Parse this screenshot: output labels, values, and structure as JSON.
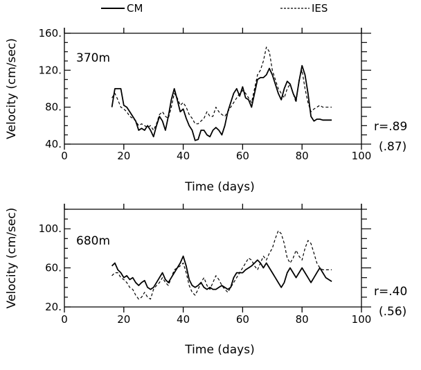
{
  "chart_data": [
    {
      "type": "line",
      "label": "370m",
      "xlabel": "Time (days)",
      "ylabel": "Velocity (cm/sec)",
      "xlim": [
        0,
        100
      ],
      "ylim": [
        40,
        160
      ],
      "x_ticks": [
        "0",
        "20",
        "40",
        "60",
        "80",
        "100"
      ],
      "y_ticks": [
        "40.",
        "80.",
        "120.",
        "160."
      ],
      "r_text": "r=.89",
      "r_paren": "(.87)",
      "series": [
        {
          "name": "CM",
          "style": "solid",
          "x": [
            16,
            17,
            18,
            19,
            20,
            21,
            22,
            23,
            24,
            25,
            26,
            27,
            28,
            29,
            30,
            31,
            32,
            33,
            34,
            35,
            36,
            37,
            38,
            39,
            40,
            41,
            42,
            43,
            44,
            45,
            46,
            47,
            48,
            49,
            50,
            51,
            52,
            53,
            54,
            55,
            56,
            57,
            58,
            59,
            60,
            61,
            62,
            63,
            64,
            65,
            66,
            67,
            68,
            69,
            70,
            71,
            72,
            73,
            74,
            75,
            76,
            77,
            78,
            79,
            80,
            81,
            82,
            83,
            84,
            85,
            86,
            87,
            88,
            89,
            90
          ],
          "y": [
            80,
            100,
            100,
            100,
            82,
            80,
            75,
            70,
            65,
            55,
            57,
            55,
            60,
            55,
            48,
            60,
            70,
            65,
            55,
            70,
            88,
            100,
            88,
            75,
            78,
            68,
            60,
            55,
            44,
            45,
            55,
            55,
            50,
            48,
            55,
            58,
            55,
            50,
            60,
            75,
            85,
            95,
            100,
            92,
            102,
            90,
            88,
            80,
            95,
            110,
            112,
            112,
            115,
            122,
            115,
            105,
            95,
            88,
            100,
            108,
            105,
            95,
            88,
            108,
            125,
            115,
            95,
            70,
            65,
            67,
            67,
            66,
            66,
            66,
            66
          ],
          "style_note": "solid"
        },
        {
          "name": "IES",
          "style": "dashed",
          "x": [
            16,
            17,
            18,
            19,
            20,
            21,
            22,
            23,
            24,
            25,
            26,
            27,
            28,
            29,
            30,
            31,
            32,
            33,
            34,
            35,
            36,
            37,
            38,
            39,
            40,
            41,
            42,
            43,
            44,
            45,
            46,
            47,
            48,
            49,
            50,
            51,
            52,
            53,
            54,
            55,
            56,
            57,
            58,
            59,
            60,
            61,
            62,
            63,
            64,
            65,
            66,
            67,
            68,
            69,
            70,
            71,
            72,
            73,
            74,
            75,
            76,
            77,
            78,
            79,
            80,
            81,
            82,
            83,
            84,
            85,
            86,
            87,
            88,
            89,
            90
          ],
          "y": [
            90,
            95,
            88,
            80,
            78,
            75,
            70,
            68,
            65,
            60,
            62,
            60,
            58,
            60,
            55,
            62,
            72,
            75,
            70,
            68,
            80,
            95,
            90,
            82,
            85,
            80,
            72,
            68,
            62,
            62,
            65,
            68,
            75,
            70,
            70,
            80,
            75,
            72,
            70,
            75,
            80,
            85,
            90,
            95,
            98,
            95,
            90,
            85,
            100,
            115,
            120,
            130,
            145,
            140,
            120,
            110,
            100,
            95,
            90,
            100,
            105,
            95,
            85,
            110,
            120,
            100,
            85,
            75,
            78,
            80,
            82,
            80,
            80,
            80,
            80
          ]
        }
      ]
    },
    {
      "type": "line",
      "label": "680m",
      "xlabel": "Time (days)",
      "ylabel": "Velocity (cm/sec)",
      "xlim": [
        0,
        100
      ],
      "ylim": [
        20,
        120
      ],
      "x_ticks": [
        "0",
        "20",
        "40",
        "60",
        "80",
        "100"
      ],
      "y_ticks": [
        "20.",
        "60.",
        "100."
      ],
      "r_text": "r=.40",
      "r_paren": "(.56)",
      "series": [
        {
          "name": "CM",
          "style": "solid",
          "x": [
            16,
            17,
            18,
            19,
            20,
            21,
            22,
            23,
            24,
            25,
            26,
            27,
            28,
            29,
            30,
            31,
            32,
            33,
            34,
            35,
            36,
            37,
            38,
            39,
            40,
            41,
            42,
            43,
            44,
            45,
            46,
            47,
            48,
            49,
            50,
            51,
            52,
            53,
            54,
            55,
            56,
            57,
            58,
            59,
            60,
            61,
            62,
            63,
            64,
            65,
            66,
            67,
            68,
            69,
            70,
            71,
            72,
            73,
            74,
            75,
            76,
            77,
            78,
            79,
            80,
            81,
            82,
            83,
            84,
            85,
            86,
            87,
            88,
            89,
            90
          ],
          "y": [
            62,
            65,
            58,
            55,
            50,
            52,
            48,
            50,
            45,
            42,
            45,
            47,
            40,
            38,
            40,
            45,
            50,
            55,
            48,
            45,
            50,
            55,
            60,
            65,
            72,
            62,
            48,
            42,
            40,
            42,
            45,
            40,
            38,
            40,
            38,
            38,
            40,
            42,
            40,
            38,
            40,
            50,
            55,
            55,
            55,
            58,
            60,
            62,
            65,
            68,
            65,
            60,
            65,
            60,
            55,
            50,
            45,
            40,
            45,
            55,
            60,
            55,
            50,
            55,
            60,
            55,
            50,
            45,
            50,
            55,
            60,
            55,
            50,
            48,
            46
          ]
        },
        {
          "name": "IES",
          "style": "dashed",
          "x": [
            16,
            17,
            18,
            19,
            20,
            21,
            22,
            23,
            24,
            25,
            26,
            27,
            28,
            29,
            30,
            31,
            32,
            33,
            34,
            35,
            36,
            37,
            38,
            39,
            40,
            41,
            42,
            43,
            44,
            45,
            46,
            47,
            48,
            49,
            50,
            51,
            52,
            53,
            54,
            55,
            56,
            57,
            58,
            59,
            60,
            61,
            62,
            63,
            64,
            65,
            66,
            67,
            68,
            69,
            70,
            71,
            72,
            73,
            74,
            75,
            76,
            77,
            78,
            79,
            80,
            81,
            82,
            83,
            84,
            85,
            86,
            87,
            88,
            89,
            90
          ],
          "y": [
            52,
            55,
            55,
            50,
            48,
            45,
            40,
            38,
            32,
            28,
            30,
            35,
            30,
            28,
            38,
            42,
            45,
            50,
            45,
            42,
            50,
            58,
            60,
            62,
            65,
            55,
            42,
            35,
            32,
            38,
            45,
            50,
            42,
            38,
            45,
            52,
            48,
            42,
            38,
            35,
            40,
            45,
            50,
            55,
            60,
            65,
            70,
            68,
            62,
            58,
            65,
            72,
            68,
            75,
            80,
            90,
            98,
            95,
            85,
            70,
            65,
            70,
            78,
            72,
            68,
            80,
            88,
            85,
            75,
            65,
            60,
            58,
            58,
            58,
            58
          ]
        }
      ]
    }
  ],
  "legend": {
    "items": [
      {
        "name": "CM",
        "style": "solid"
      },
      {
        "name": "IES",
        "style": "dashed"
      }
    ]
  },
  "colors": {
    "line": "#000000",
    "background": "#ffffff"
  }
}
